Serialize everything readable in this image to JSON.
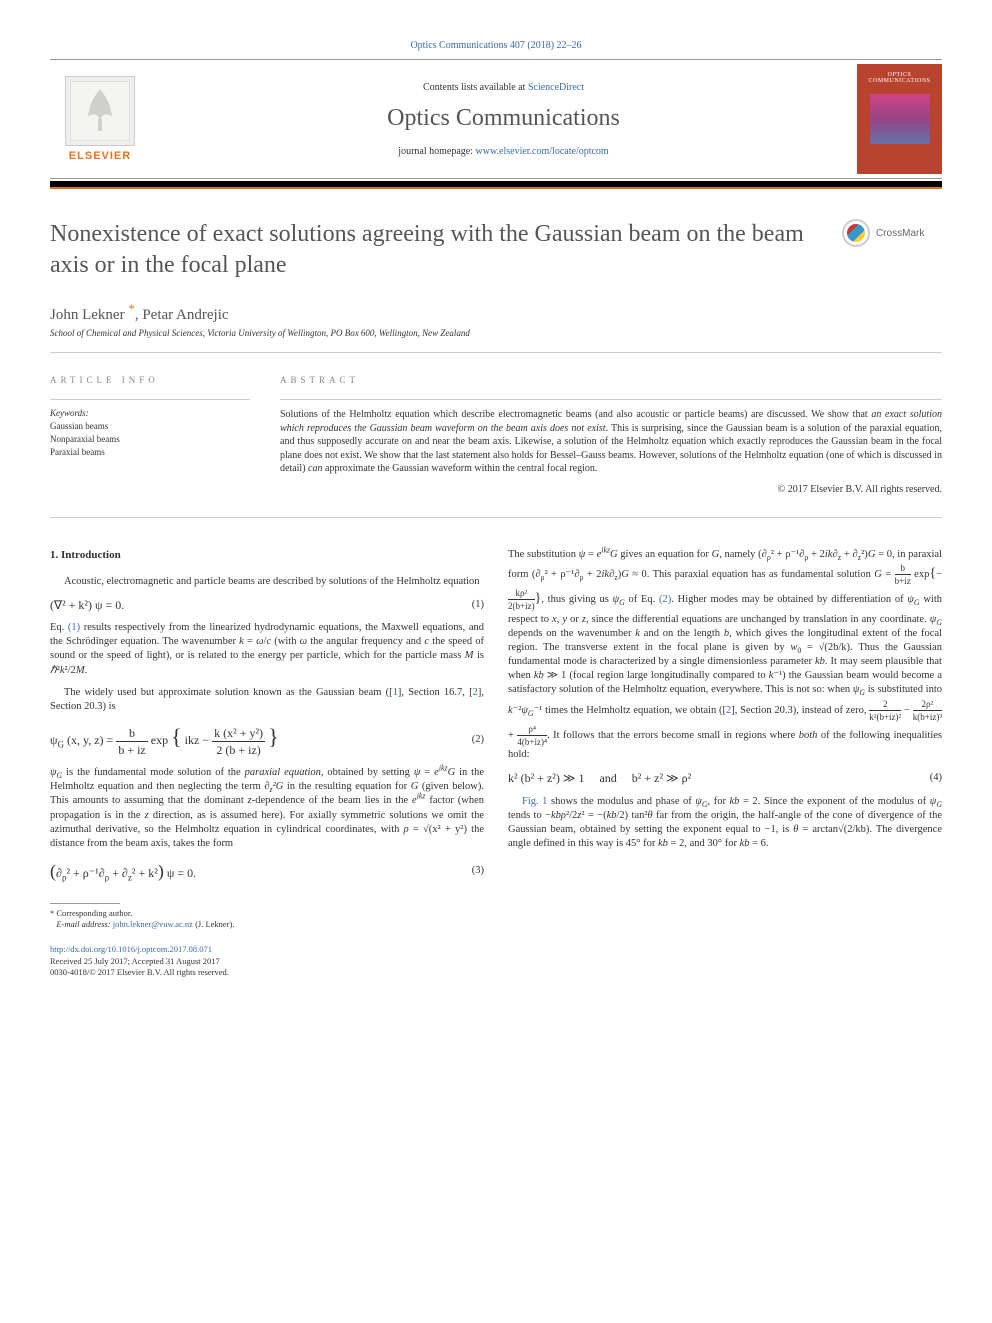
{
  "journal_ref": "Optics Communications 407 (2018) 22–26",
  "header": {
    "contents_prefix": "Contents lists available at ",
    "contents_link": "ScienceDirect",
    "journal_name": "Optics Communications",
    "homepage_prefix": "journal homepage: ",
    "homepage_link": "www.elsevier.com/locate/optcom",
    "elsevier_label": "ELSEVIER",
    "cover_line1": "OPTICS",
    "cover_line2": "COMMUNICATIONS"
  },
  "crossmark_label": "CrossMark",
  "title": "Nonexistence of exact solutions agreeing with the Gaussian beam on the beam axis or in the focal plane",
  "authors": "John Lekner *, Petar Andrejic",
  "affiliation": "School of Chemical and Physical Sciences, Victoria University of Wellington, PO Box 600, Wellington, New Zealand",
  "article_info_heading": "ARTICLE INFO",
  "keywords_label": "Keywords:",
  "keywords": [
    "Gaussian beams",
    "Nonparaxial beams",
    "Paraxial beams"
  ],
  "abstract_heading": "ABSTRACT",
  "abstract_html": "Solutions of the Helmholtz equation which describe electromagnetic beams (and also acoustic or particle beams) are discussed. We show that <i>an exact solution which reproduces the Gaussian beam waveform on the beam axis does not exist</i>. This is surprising, since the Gaussian beam is a solution of the paraxial equation, and thus supposedly accurate on and near the beam axis. Likewise, a solution of the Helmholtz equation which exactly reproduces the Gaussian beam in the focal plane does not exist. We show that the last statement also holds for Bessel–Gauss beams. However, solutions of the Helmholtz equation (one of which is discussed in detail) <i>can</i> approximate the Gaussian waveform within the central focal region.",
  "copyright": "© 2017 Elsevier B.V. All rights reserved.",
  "section1_heading": "1. Introduction",
  "col1": {
    "p1": "Acoustic, electromagnetic and particle beams are described by solutions of the Helmholtz equation",
    "eq1": "(∇² + k²) ψ = 0.",
    "eq1_num": "(1)",
    "p2_html": "Eq. <span class='ref-link'>(1)</span> results respectively from the linearized hydrodynamic equations, the Maxwell equations, and the Schrödinger equation. The wavenumber <i>k</i> = <i>ω</i>/<i>c</i> (with <i>ω</i> the angular frequency and <i>c</i> the speed of sound or the speed of light), or is related to the energy per particle, which for the particle mass <i>M</i> is <i>ℏ</i>²<i>k</i>²/2<i>M</i>.",
    "p3_html": "The widely used but approximate solution known as the Gaussian beam ([<span class='ref-link'>1</span>], Section 16.7, [<span class='ref-link'>2</span>], Section 20.3) is",
    "eq2": "ψ<sub>G</sub> (x, y, z) = <span style='display:inline-block;vertical-align:middle;text-align:center;'><span style='display:block;border-bottom:1px solid #333;padding:0 2px;'>b</span><span style='display:block;padding:0 2px;'>b + iz</span></span> exp <span style='font-size:22px;'>{</span> ikz − <span style='display:inline-block;vertical-align:middle;text-align:center;'><span style='display:block;border-bottom:1px solid #333;padding:0 2px;'>k (x² + y²)</span><span style='display:block;padding:0 2px;'>2 (b + iz)</span></span> <span style='font-size:22px;'>}</span>",
    "eq2_num": "(2)",
    "p4_html": "<i>ψ<sub>G</sub></i> is the fundamental mode solution of the <i>paraxial equation</i>, obtained by setting <i>ψ</i> = <i>e<sup>ikz</sup>G</i> in the Helmholtz equation and then neglecting the term <i>∂<sub>z</sub>²G</i> in the resulting equation for <i>G</i> (given below). This amounts to assuming that the dominant <i>z</i>-dependence of the beam lies in the <i>e<sup>ikz</sup></i> factor (when propagation is in the <i>z</i> direction, as is assumed here). For axially symmetric solutions we omit the azimuthal derivative, so the Helmholtz equation in cylindrical coordinates, with <i>ρ</i> = √(x² + y²) the distance from the beam axis, takes the form",
    "eq3": "<span style='font-size:18px;'>(</span>∂<sub>ρ</sub>² + ρ⁻¹∂<sub>ρ</sub> + ∂<sub>z</sub>² + k²<span style='font-size:18px;'>)</span> ψ = 0.",
    "eq3_num": "(3)"
  },
  "col2": {
    "p1_html": "The substitution <i>ψ</i> = <i>e<sup>ikz</sup>G</i> gives an equation for <i>G</i>, namely (∂<sub>ρ</sub>² + ρ⁻¹∂<sub>ρ</sub> + 2<i>ik</i>∂<sub>z</sub> + ∂<sub>z</sub>²)<i>G</i> = 0, in paraxial form (∂<sub>ρ</sub>² + ρ⁻¹∂<sub>ρ</sub> + 2<i>ik</i>∂<sub>z</sub>)<i>G</i> ≈ 0. This paraxial equation has as fundamental solution <i>G</i> = <span style='display:inline-block;vertical-align:middle;text-align:center;font-size:9px;'><span style='display:block;border-bottom:1px solid #333;'>b</span><span>b+iz</span></span> exp<span style='font-size:14px;'>{</span>−<span style='display:inline-block;vertical-align:middle;text-align:center;font-size:9px;'><span style='display:block;border-bottom:1px solid #333;'>kρ²</span><span>2(b+iz)</span></span><span style='font-size:14px;'>}</span>, thus giving us <i>ψ<sub>G</sub></i> of Eq. <span class='ref-link'>(2)</span>. Higher modes may be obtained by differentiation of <i>ψ<sub>G</sub></i> with respect to <i>x</i>, <i>y</i> or <i>z</i>, since the differential equations are unchanged by translation in any coordinate. <i>ψ<sub>G</sub></i> depends on the wavenumber <i>k</i> and on the length <i>b</i>, which gives the longitudinal extent of the focal region. The transverse extent in the focal plane is given by <i>w</i><sub>0</sub> = √(2b/k). Thus the Gaussian fundamental mode is characterized by a single dimensionless parameter <i>kb</i>. It may seem plausible that when <i>kb</i> ≫ 1 (focal region large longitudinally compared to <i>k</i>⁻¹) the Gaussian beam would become a satisfactory solution of the Helmholtz equation, everywhere. This is not so: when <i>ψ<sub>G</sub></i> is substituted into <i>k</i>⁻²<i>ψ<sub>G</sub></i>⁻¹ times the Helmholtz equation, we obtain ([<span class='ref-link'>2</span>], Section 20.3), instead of zero, <span style='display:inline-block;vertical-align:middle;text-align:center;font-size:9px;'><span style='display:block;border-bottom:1px solid #333;'>2</span><span>k²(b+iz)²</span></span> − <span style='display:inline-block;vertical-align:middle;text-align:center;font-size:9px;'><span style='display:block;border-bottom:1px solid #333;'>2ρ²</span><span>k(b+iz)³</span></span> + <span style='display:inline-block;vertical-align:middle;text-align:center;font-size:9px;'><span style='display:block;border-bottom:1px solid #333;'>ρ⁴</span><span>4(b+iz)⁴</span></span>. It follows that the errors become small in regions where <i>both</i> of the following inequalities hold:",
    "eq4": "k² (b² + z²) ≫ 1 &nbsp;&nbsp;&nbsp; and &nbsp;&nbsp;&nbsp; b² + z² ≫ ρ²",
    "eq4_num": "(4)",
    "p2_html": "<span class='ref-link'>Fig. 1</span> shows the modulus and phase of <i>ψ<sub>G</sub></i>, for <i>kb</i> = 2. Since the exponent of the modulus of <i>ψ<sub>G</sub></i> tends to −<i>kbρ</i>²/2<i>z</i>² = −(<i>kb</i>/2) tan²<i>θ</i> far from the origin, the half-angle of the cone of divergence of the Gaussian beam, obtained by setting the exponent equal to −1, is <i>θ</i> = arctan√(2/kb). The divergence angle defined in this way is 45° for <i>kb</i> = 2, and 30° for <i>kb</i> = 6."
  },
  "footnote": {
    "corr": "* Corresponding author.",
    "email_label": "E-mail address: ",
    "email": "john.lekner@vuw.ac.nz",
    "email_suffix": " (J. Lekner)."
  },
  "doi": {
    "link": "http://dx.doi.org/10.1016/j.optcom.2017.08.071",
    "received": "Received 25 July 2017; Accepted 31 August 2017",
    "issn": "0030-4018/© 2017 Elsevier B.V. All rights reserved."
  },
  "colors": {
    "link": "#3a6aa8",
    "orange": "#e8711c",
    "cover": "#b8432f"
  }
}
